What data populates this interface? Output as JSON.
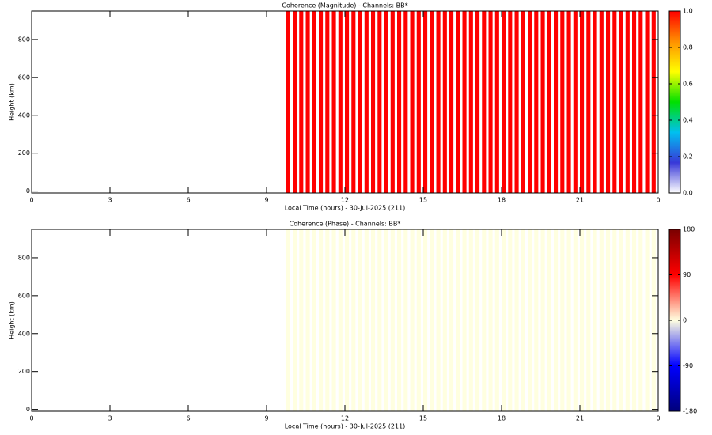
{
  "chart_data": [
    {
      "type": "heatmap",
      "title": "Coherence (Magnitude) - Channels: BB*",
      "x_label": "Local Time (hours) - 30-Jul-2025 (211)",
      "y_label": "Height (km)",
      "xlim": [
        0,
        24
      ],
      "xticks": [
        0,
        3,
        6,
        9,
        12,
        15,
        18,
        21,
        {
          "value": 24,
          "label": "0"
        }
      ],
      "ylim": [
        -10,
        950
      ],
      "yticks": [
        0,
        200,
        400,
        600,
        800
      ],
      "x": [
        9.75,
        10,
        10.25,
        10.5,
        10.75,
        11,
        11.25,
        11.5,
        11.75,
        12,
        12.25,
        12.5,
        12.75,
        13,
        13.25,
        13.5,
        13.75,
        14,
        14.25,
        14.5,
        14.75,
        15,
        15.25,
        15.5,
        15.75,
        16,
        16.25,
        16.5,
        16.75,
        17,
        17.25,
        17.5,
        17.75,
        18,
        18.25,
        18.5,
        18.75,
        19,
        19.25,
        19.5,
        19.75,
        20,
        20.25,
        20.5,
        20.75,
        21,
        21.25,
        21.5,
        21.75,
        22,
        22.25,
        22.5,
        22.75,
        23,
        23.25,
        23.5,
        23.75
      ],
      "values": [
        1,
        1,
        1,
        1,
        1,
        1,
        1,
        1,
        1,
        1,
        1,
        1,
        1,
        1,
        1,
        1,
        1,
        1,
        1,
        1,
        1,
        1,
        1,
        1,
        1,
        1,
        1,
        1,
        1,
        1,
        1,
        1,
        1,
        1,
        1,
        1,
        1,
        1,
        1,
        1,
        1,
        1,
        1,
        1,
        1,
        1,
        1,
        1,
        1,
        1,
        1,
        1,
        1,
        1,
        1,
        1,
        1
      ],
      "zlim": [
        0,
        1
      ],
      "zticks": [
        {
          "value": 0,
          "label": "0.0"
        },
        {
          "value": 0.2,
          "label": "0.2"
        },
        {
          "value": 0.4,
          "label": "0.4"
        },
        {
          "value": 0.6,
          "label": "0.6"
        },
        {
          "value": 0.8,
          "label": "0.8"
        },
        {
          "value": 1,
          "label": "1.0"
        }
      ],
      "colorscale": [
        "#ffffff",
        "#3838d8",
        "#00c0f0",
        "#00e000",
        "#ffff00",
        "#ff9000",
        "#ff0000"
      ]
    },
    {
      "type": "heatmap",
      "title": "Coherence (Phase) - Channels: BB*",
      "x_label": "Local Time (hours) - 30-Jul-2025 (211)",
      "y_label": "Height (km)",
      "xlim": [
        0,
        24
      ],
      "xticks": [
        0,
        3,
        6,
        9,
        12,
        15,
        18,
        21,
        {
          "value": 24,
          "label": "0"
        }
      ],
      "ylim": [
        -10,
        950
      ],
      "yticks": [
        0,
        200,
        400,
        600,
        800
      ],
      "x": [
        9.75,
        10,
        10.25,
        10.5,
        10.75,
        11,
        11.25,
        11.5,
        11.75,
        12,
        12.25,
        12.5,
        12.75,
        13,
        13.25,
        13.5,
        13.75,
        14,
        14.25,
        14.5,
        14.75,
        15,
        15.25,
        15.5,
        15.75,
        16,
        16.25,
        16.5,
        16.75,
        17,
        17.25,
        17.5,
        17.75,
        18,
        18.25,
        18.5,
        18.75,
        19,
        19.25,
        19.5,
        19.75,
        20,
        20.25,
        20.5,
        20.75,
        21,
        21.25,
        21.5,
        21.75,
        22,
        22.25,
        22.5,
        22.75,
        23,
        23.25,
        23.5,
        23.75
      ],
      "values": [
        0,
        0,
        0,
        0,
        0,
        0,
        0,
        0,
        0,
        0,
        0,
        0,
        0,
        0,
        0,
        0,
        0,
        0,
        0,
        0,
        0,
        0,
        0,
        0,
        0,
        0,
        0,
        0,
        0,
        0,
        0,
        0,
        0,
        0,
        0,
        0,
        0,
        0,
        0,
        0,
        0,
        0,
        0,
        0,
        0,
        0,
        0,
        0,
        0,
        0,
        0,
        0,
        0,
        0,
        0,
        0,
        0
      ],
      "zlim": [
        -180,
        180
      ],
      "zticks": [
        -180,
        -90,
        0,
        90,
        180
      ],
      "colorscale": [
        "#00007a",
        "#0000ff",
        "#ffffe0",
        "#ff0000",
        "#7a0000"
      ]
    }
  ]
}
